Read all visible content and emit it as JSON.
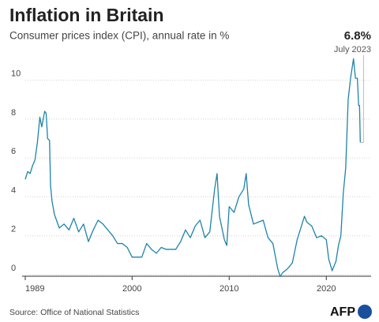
{
  "chart_data": {
    "type": "line",
    "title": "Inflation  in Britain",
    "subtitle": "Consumer prices index (CPI), annual rate in %",
    "annotation": {
      "value": "6.8%",
      "date": "July 2023"
    },
    "source": "Source: Office of National Statistics",
    "logo": "AFP",
    "x": [
      1989.0,
      1989.25,
      1989.5,
      1989.75,
      1990.0,
      1990.25,
      1990.5,
      1990.7,
      1991.0,
      1991.15,
      1991.3,
      1991.5,
      1991.6,
      1991.75,
      1992.0,
      1992.5,
      1993.0,
      1993.5,
      1994.0,
      1994.5,
      1995.0,
      1995.5,
      1996.0,
      1996.5,
      1997.0,
      1997.5,
      1998.0,
      1998.5,
      1999.0,
      1999.5,
      2000.0,
      2000.5,
      2001.0,
      2001.5,
      2002.0,
      2002.5,
      2003.0,
      2003.5,
      2004.0,
      2004.5,
      2005.0,
      2005.5,
      2006.0,
      2006.5,
      2007.0,
      2007.5,
      2008.0,
      2008.5,
      2008.75,
      2009.0,
      2009.5,
      2009.75,
      2010.0,
      2010.5,
      2011.0,
      2011.5,
      2011.75,
      2012.0,
      2012.5,
      2013.0,
      2013.5,
      2014.0,
      2014.5,
      2015.0,
      2015.25,
      2015.5,
      2016.0,
      2016.5,
      2017.0,
      2017.5,
      2017.75,
      2018.0,
      2018.5,
      2019.0,
      2019.5,
      2020.0,
      2020.25,
      2020.6,
      2021.0,
      2021.25,
      2021.5,
      2021.75,
      2022.0,
      2022.25,
      2022.5,
      2022.8,
      2023.0,
      2023.2,
      2023.33,
      2023.42,
      2023.5
    ],
    "series": [
      {
        "name": "CPI",
        "color": "#1f83a8",
        "values": [
          4.9,
          5.3,
          5.2,
          5.6,
          5.9,
          6.8,
          8.1,
          7.6,
          8.4,
          8.3,
          7.0,
          6.9,
          4.6,
          3.8,
          3.1,
          2.4,
          2.6,
          2.3,
          2.9,
          2.2,
          2.6,
          1.7,
          2.3,
          2.8,
          2.6,
          2.3,
          2.0,
          1.6,
          1.6,
          1.4,
          0.9,
          0.9,
          0.9,
          1.6,
          1.3,
          1.1,
          1.4,
          1.3,
          1.3,
          1.3,
          1.7,
          2.3,
          1.9,
          2.5,
          2.8,
          1.9,
          2.2,
          4.4,
          5.2,
          3.0,
          1.8,
          1.5,
          3.5,
          3.2,
          4.0,
          4.4,
          5.2,
          3.6,
          2.6,
          2.7,
          2.8,
          1.9,
          1.6,
          0.3,
          -0.1,
          0.1,
          0.3,
          0.6,
          1.8,
          2.6,
          3.0,
          2.7,
          2.5,
          1.9,
          2.0,
          1.8,
          0.8,
          0.2,
          0.7,
          1.5,
          2.0,
          4.2,
          5.5,
          9.0,
          10.1,
          11.1,
          10.1,
          10.1,
          8.7,
          8.7,
          6.8
        ]
      }
    ],
    "xlim": [
      1989,
      2023.8
    ],
    "xticks": [
      1989,
      2000,
      2010,
      2020
    ],
    "ylim": [
      0,
      11.2
    ],
    "yticks": [
      0,
      2,
      4,
      6,
      8,
      10
    ],
    "grid": true
  }
}
